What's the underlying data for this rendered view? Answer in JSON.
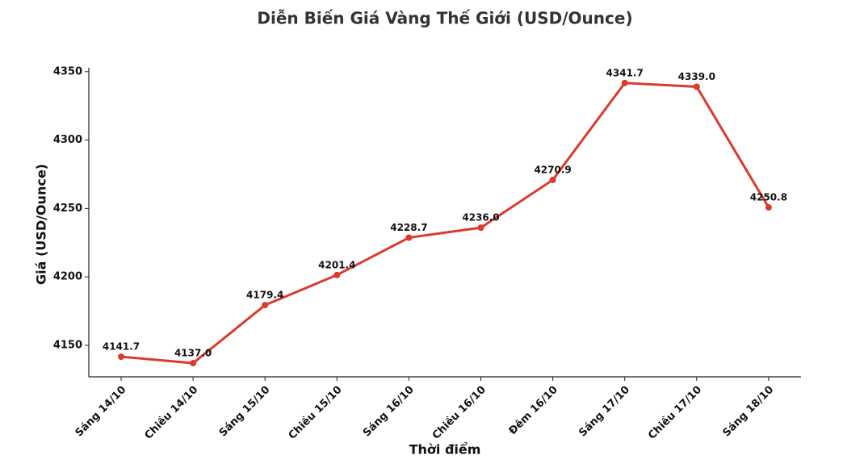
{
  "chart_data": {
    "type": "line",
    "title": "Diễn Biến Giá Vàng Thế Giới (USD/Ounce)",
    "x_label": "Thời điểm",
    "y_label": "Giá (USD/Ounce)",
    "categories": [
      "Sáng 14/10",
      "Chiều 14/10",
      "Sáng 15/10",
      "Chiều 15/10",
      "Sáng 16/10",
      "Chiều 16/10",
      "Đêm 16/10",
      "Sáng 17/10",
      "Chiều 17/10",
      "Sáng 18/10"
    ],
    "values": [
      4141.7,
      4137.0,
      4179.4,
      4201.4,
      4228.7,
      4236.0,
      4270.9,
      4341.7,
      4339.0,
      4250.8
    ],
    "value_labels": [
      "4141.7",
      "4137.0",
      "4179.4",
      "4201.4",
      "4228.7",
      "4236.0",
      "4270.9",
      "4341.7",
      "4339.0",
      "4250.8"
    ],
    "color": "#db3a2c",
    "ylim": [
      4127,
      4354
    ],
    "yticks": [
      4150,
      4200,
      4250,
      4300,
      4350
    ],
    "grid": false
  }
}
